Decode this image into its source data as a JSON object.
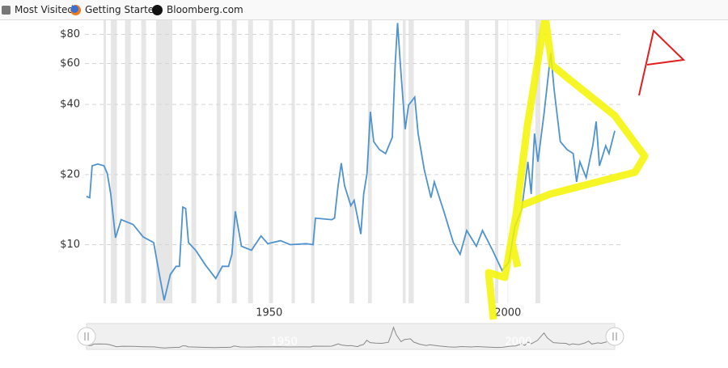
{
  "bookmarks": [
    "Most Visited",
    "Getting Started",
    "Bloomberg.com"
  ],
  "chart_data": {
    "type": "line",
    "xlim": [
      1911.4,
      2024.1
    ],
    "xticks": [
      1950,
      2000
    ],
    "ylim": [
      5.6,
      92
    ],
    "log_scale": true,
    "grid": true,
    "yticks": [
      {
        "value": 10,
        "label": "$10"
      },
      {
        "value": 20,
        "label": "$20"
      },
      {
        "value": 40,
        "label": "$40"
      },
      {
        "value": 60,
        "label": "$60"
      },
      {
        "value": 80,
        "label": "$80"
      }
    ],
    "shaded_color": "#e6e6e6",
    "shaded_periods": [
      [
        1915.3,
        1915.8
      ],
      [
        1916.8,
        1918.1
      ],
      [
        1919.8,
        1921.0
      ],
      [
        1923.2,
        1924.2
      ],
      [
        1926.3,
        1929.7
      ],
      [
        1933.7,
        1934.7
      ],
      [
        1939.0,
        1939.8
      ],
      [
        1942.2,
        1943.2
      ],
      [
        1945.6,
        1946.6
      ],
      [
        1950.0,
        1950.8
      ],
      [
        1954.7,
        1955.4
      ],
      [
        1958.8,
        1959.5
      ],
      [
        1966.8,
        1967.8
      ],
      [
        1970.7,
        1971.5
      ],
      [
        1978.0,
        1978.6
      ],
      [
        1979.2,
        1980.3
      ],
      [
        1991.0,
        1991.9
      ],
      [
        1997.3,
        1998.0
      ],
      [
        2005.8,
        2006.8
      ]
    ],
    "series": [
      {
        "color": "#4f93cf",
        "x": [
          1911.7,
          1912.4,
          1912.9,
          1914.1,
          1915.4,
          1916.1,
          1916.8,
          1917.8,
          1919.0,
          1921.5,
          1923.6,
          1925.8,
          1927.0,
          1928.0,
          1929.3,
          1930.5,
          1931.2,
          1931.9,
          1932.5,
          1933.1,
          1934.6,
          1936.6,
          1938.8,
          1940.2,
          1941.5,
          1942.2,
          1942.9,
          1944.2,
          1946.3,
          1948.3,
          1949.7,
          1952.4,
          1954.4,
          1957.8,
          1959.2,
          1959.7,
          1963.1,
          1963.7,
          1964.4,
          1965.1,
          1965.8,
          1967.1,
          1967.8,
          1969.2,
          1969.8,
          1970.5,
          1971.2,
          1971.9,
          1973.1,
          1974.4,
          1975.8,
          1976.4,
          1976.9,
          1977.5,
          1978.5,
          1979.2,
          1980.5,
          1981.2,
          1982.5,
          1983.9,
          1984.6,
          1986.6,
          1988.6,
          1990.0,
          1991.4,
          1993.4,
          1994.7,
          1996.8,
          1998.8,
          2000.2,
          2001.5,
          2002.9,
          2004.2,
          2004.9,
          2005.6,
          2006.3,
          2007.6,
          2009.0,
          2009.7,
          2011.0,
          2012.4,
          2013.7,
          2014.4,
          2015.1,
          2016.4,
          2017.8,
          2018.5,
          2019.2,
          2020.5,
          2021.2,
          2022.4
        ],
        "values": [
          16.1,
          15.9,
          21.8,
          22.2,
          21.8,
          20.2,
          16.5,
          10.7,
          12.8,
          12.2,
          10.8,
          10.2,
          7.45,
          5.77,
          7.45,
          8.07,
          8.07,
          14.5,
          14.3,
          10.2,
          9.46,
          8.2,
          7.16,
          8.07,
          8.07,
          9.09,
          13.9,
          9.84,
          9.46,
          10.9,
          10.1,
          10.4,
          10.0,
          10.1,
          10.0,
          13.0,
          12.8,
          13.0,
          17.6,
          22.4,
          17.9,
          14.7,
          15.5,
          11.1,
          16.5,
          20.2,
          37.2,
          27.7,
          25.6,
          24.6,
          28.9,
          59.1,
          89.5,
          59.1,
          31.3,
          39.7,
          43.0,
          30.0,
          21.0,
          15.9,
          18.6,
          13.9,
          10.2,
          9.09,
          11.5,
          9.84,
          11.5,
          9.46,
          7.75,
          8.39,
          12.0,
          14.1,
          22.7,
          16.5,
          30.0,
          22.7,
          36.6,
          66.6,
          46.5,
          27.7,
          25.6,
          24.6,
          18.6,
          22.7,
          19.4,
          26.6,
          33.8,
          21.8,
          26.6,
          24.6,
          30.8
        ]
      }
    ]
  }
}
